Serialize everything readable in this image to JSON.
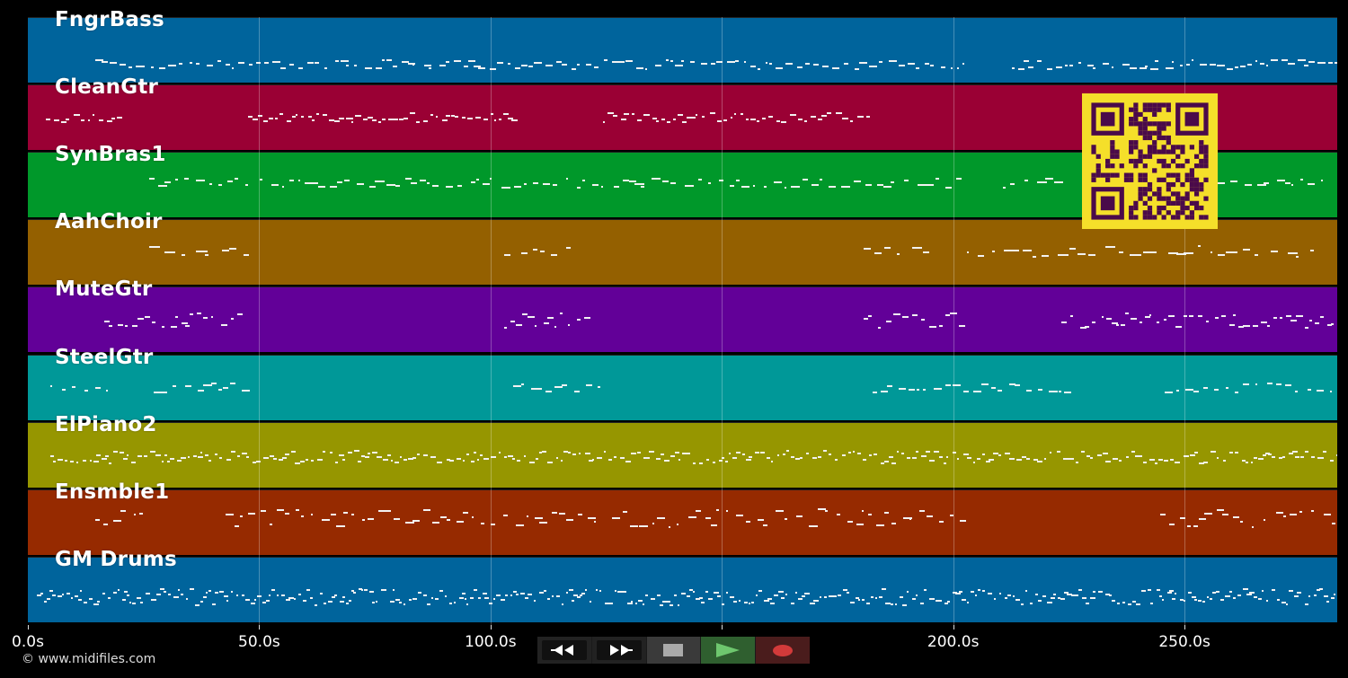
{
  "tracks": [
    {
      "name": "FngrBass",
      "color": "#00649c"
    },
    {
      "name": "CleanGtr",
      "color": "#9a0034"
    },
    {
      "name": "SynBras1",
      "color": "#00982a"
    },
    {
      "name": "AahChoir",
      "color": "#946000"
    },
    {
      "name": "MuteGtr",
      "color": "#620098"
    },
    {
      "name": "SteelGtr",
      "color": "#009898"
    },
    {
      "name": "ElPiano2",
      "color": "#969600"
    },
    {
      "name": "Ensmble1",
      "color": "#962a00"
    },
    {
      "name": "GM Drums",
      "color": "#00649c"
    }
  ],
  "timeline": {
    "unit": "s",
    "visible_start": 0,
    "visible_end": 283,
    "ticks": [
      {
        "value": 0,
        "label": "0.0s"
      },
      {
        "value": 50,
        "label": "50.0s"
      },
      {
        "value": 100,
        "label": "100.0s"
      },
      {
        "value": 150,
        "label": ""
      },
      {
        "value": 200,
        "label": "200.0s"
      },
      {
        "value": 250,
        "label": "250.0s"
      }
    ]
  },
  "copyright": "© www.midifiles.com",
  "transport": {
    "rewind": "rewind-icon",
    "fast_forward": "fast-forward-icon",
    "stop": "stop-icon",
    "play": "play-icon",
    "record": "record-icon"
  },
  "qr_code": {
    "foreground": "#4a0a4a",
    "background": "#f5df2a"
  }
}
